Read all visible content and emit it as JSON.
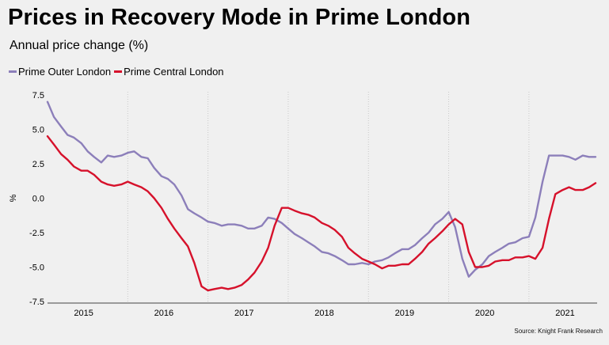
{
  "chart_data": {
    "type": "line",
    "title": "Prices in Recovery Mode in Prime London",
    "subtitle": "Annual price change (%)",
    "ylabel": "%",
    "xlabel": "",
    "ylim": [
      -7.5,
      7.5
    ],
    "xlim": [
      2014.55,
      2021.4
    ],
    "yticks": [
      7.5,
      5.0,
      2.5,
      0.0,
      -2.5,
      -5.0,
      -7.5
    ],
    "ytick_labels": [
      "7.5",
      "5.0",
      "2.5",
      "0.0",
      "-2.5",
      "-5.0",
      "-7.5"
    ],
    "xtick_labels": [
      "2015",
      "2016",
      "2017",
      "2018",
      "2019",
      "2020",
      "2021"
    ],
    "xtick_positions": [
      2015,
      2016,
      2017,
      2018,
      2019,
      2020,
      2021
    ],
    "grid": "vertical dotted",
    "legend": "top-left",
    "source": "Source: Knight Frank Research",
    "series": [
      {
        "name": "Prime Outer London",
        "color": "#8c7fba",
        "x": [
          2014.55,
          2014.63,
          2014.72,
          2014.8,
          2014.88,
          2014.97,
          2015.05,
          2015.13,
          2015.22,
          2015.3,
          2015.38,
          2015.47,
          2015.55,
          2015.63,
          2015.72,
          2015.8,
          2015.88,
          2015.97,
          2016.05,
          2016.13,
          2016.22,
          2016.3,
          2016.38,
          2016.47,
          2016.55,
          2016.63,
          2016.72,
          2016.8,
          2016.88,
          2016.97,
          2017.05,
          2017.13,
          2017.22,
          2017.3,
          2017.38,
          2017.47,
          2017.55,
          2017.63,
          2017.72,
          2017.8,
          2017.88,
          2017.97,
          2018.05,
          2018.13,
          2018.22,
          2018.3,
          2018.38,
          2018.47,
          2018.55,
          2018.63,
          2018.72,
          2018.8,
          2018.88,
          2018.97,
          2019.05,
          2019.13,
          2019.22,
          2019.3,
          2019.38,
          2019.47,
          2019.55,
          2019.63,
          2019.72,
          2019.8,
          2019.88,
          2019.97,
          2020.05,
          2020.13,
          2020.22,
          2020.3,
          2020.38,
          2020.47,
          2020.55,
          2020.63,
          2020.72,
          2020.8,
          2020.88,
          2020.97,
          2021.05,
          2021.13,
          2021.22,
          2021.3,
          2021.38
        ],
        "values": [
          7.0,
          5.9,
          5.2,
          4.6,
          4.4,
          4.0,
          3.4,
          3.0,
          2.6,
          3.1,
          3.0,
          3.1,
          3.3,
          3.4,
          3.0,
          2.9,
          2.2,
          1.6,
          1.4,
          1.0,
          0.2,
          -0.8,
          -1.1,
          -1.4,
          -1.7,
          -1.8,
          -2.0,
          -1.9,
          -1.9,
          -2.0,
          -2.2,
          -2.2,
          -2.0,
          -1.4,
          -1.5,
          -1.8,
          -2.2,
          -2.6,
          -2.9,
          -3.2,
          -3.5,
          -3.9,
          -4.0,
          -4.2,
          -4.5,
          -4.8,
          -4.8,
          -4.7,
          -4.8,
          -4.6,
          -4.5,
          -4.3,
          -4.0,
          -3.7,
          -3.7,
          -3.4,
          -2.9,
          -2.5,
          -1.9,
          -1.5,
          -1.0,
          -2.1,
          -4.4,
          -5.7,
          -5.2,
          -4.8,
          -4.2,
          -3.9,
          -3.6,
          -3.3,
          -3.2,
          -2.9,
          -2.8,
          -1.4,
          1.2,
          3.1,
          3.1,
          3.1,
          3.0,
          2.8,
          3.1,
          3.0,
          3.0
        ]
      },
      {
        "name": "Prime Central London",
        "color": "#d6112b",
        "x": [
          2014.55,
          2014.63,
          2014.72,
          2014.8,
          2014.88,
          2014.97,
          2015.05,
          2015.13,
          2015.22,
          2015.3,
          2015.38,
          2015.47,
          2015.55,
          2015.63,
          2015.72,
          2015.8,
          2015.88,
          2015.97,
          2016.05,
          2016.13,
          2016.22,
          2016.3,
          2016.38,
          2016.47,
          2016.55,
          2016.63,
          2016.72,
          2016.8,
          2016.88,
          2016.97,
          2017.05,
          2017.13,
          2017.22,
          2017.3,
          2017.38,
          2017.47,
          2017.55,
          2017.63,
          2017.72,
          2017.8,
          2017.88,
          2017.97,
          2018.05,
          2018.13,
          2018.22,
          2018.3,
          2018.38,
          2018.47,
          2018.55,
          2018.63,
          2018.72,
          2018.8,
          2018.88,
          2018.97,
          2019.05,
          2019.13,
          2019.22,
          2019.3,
          2019.38,
          2019.47,
          2019.55,
          2019.63,
          2019.72,
          2019.8,
          2019.88,
          2019.97,
          2020.05,
          2020.13,
          2020.22,
          2020.3,
          2020.38,
          2020.47,
          2020.55,
          2020.63,
          2020.72,
          2020.8,
          2020.88,
          2020.97,
          2021.05,
          2021.13,
          2021.22,
          2021.3,
          2021.38
        ],
        "values": [
          4.5,
          3.9,
          3.2,
          2.8,
          2.3,
          2.0,
          2.0,
          1.7,
          1.2,
          1.0,
          0.9,
          1.0,
          1.2,
          1.0,
          0.8,
          0.5,
          0.0,
          -0.7,
          -1.5,
          -2.2,
          -2.9,
          -3.5,
          -4.7,
          -6.4,
          -6.7,
          -6.6,
          -6.5,
          -6.6,
          -6.5,
          -6.3,
          -5.9,
          -5.4,
          -4.6,
          -3.6,
          -2.0,
          -0.7,
          -0.7,
          -0.9,
          -1.1,
          -1.2,
          -1.4,
          -1.8,
          -2.0,
          -2.3,
          -2.8,
          -3.6,
          -4.0,
          -4.4,
          -4.6,
          -4.8,
          -5.1,
          -4.9,
          -4.9,
          -4.8,
          -4.8,
          -4.4,
          -3.9,
          -3.3,
          -2.9,
          -2.4,
          -1.9,
          -1.5,
          -1.9,
          -3.9,
          -5.0,
          -5.0,
          -4.9,
          -4.6,
          -4.5,
          -4.5,
          -4.3,
          -4.3,
          -4.2,
          -4.4,
          -3.6,
          -1.5,
          0.3,
          0.6,
          0.8,
          0.6,
          0.6,
          0.8,
          1.1
        ]
      }
    ]
  }
}
